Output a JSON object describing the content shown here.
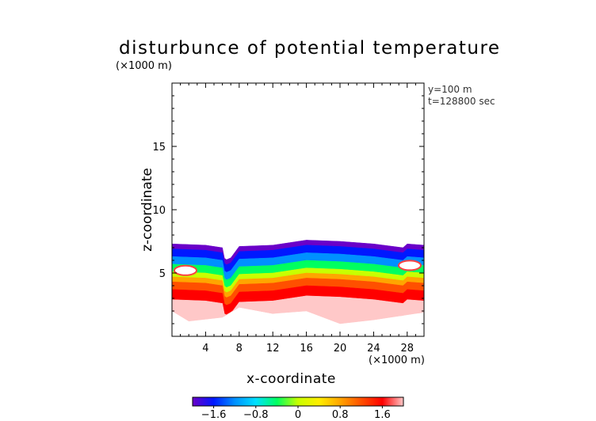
{
  "chart_data": {
    "type": "heatmap",
    "title": "disturbunce of potential temperature",
    "xlabel": "x-coordinate",
    "ylabel": "z-coordinate",
    "x_unit": "(×1000 m)",
    "y_unit": "(×1000 m)",
    "annotations": [
      "y=100 m",
      "t=128800 sec"
    ],
    "xlim": [
      0,
      30
    ],
    "ylim": [
      0,
      20
    ],
    "x_ticks": [
      4,
      8,
      12,
      16,
      20,
      24,
      28
    ],
    "y_ticks": [
      5,
      10,
      15
    ],
    "x_tick_labels": [
      "4",
      "8",
      "12",
      "16",
      "20",
      "24",
      "28"
    ],
    "y_tick_labels": [
      "5",
      "10",
      "15"
    ],
    "colorbar": {
      "min": -2.0,
      "max": 2.0,
      "ticks": [
        -1.6,
        -0.8,
        0,
        0.8,
        1.6
      ],
      "tick_labels": [
        "−1.6",
        "−0.8",
        "0",
        "0.8",
        "1.6"
      ],
      "colors": [
        "#6a00c8",
        "#0018ff",
        "#0090ff",
        "#00e0ff",
        "#00ff60",
        "#c8ff00",
        "#ffee00",
        "#ffa500",
        "#ff5000",
        "#ff0000",
        "#ffc8c8"
      ]
    },
    "field": {
      "description_free": false,
      "top_boundary": [
        [
          0,
          7.3
        ],
        [
          4,
          7.2
        ],
        [
          6,
          7.0
        ],
        [
          6.3,
          6.0
        ],
        [
          7,
          6.2
        ],
        [
          8,
          7.1
        ],
        [
          12,
          7.2
        ],
        [
          16,
          7.6
        ],
        [
          20,
          7.5
        ],
        [
          24,
          7.3
        ],
        [
          27.5,
          7.0
        ],
        [
          28,
          7.3
        ],
        [
          30,
          7.2
        ]
      ],
      "bottom_boundary": [
        [
          0,
          2.0
        ],
        [
          2,
          1.2
        ],
        [
          6,
          1.5
        ],
        [
          8,
          2.3
        ],
        [
          12,
          1.8
        ],
        [
          16,
          2.0
        ],
        [
          20,
          1.0
        ],
        [
          24,
          1.3
        ],
        [
          28,
          1.7
        ],
        [
          30,
          1.9
        ]
      ],
      "hot_spots": [
        [
          1.6,
          5.2,
          2.6
        ],
        [
          28.3,
          5.6,
          2.3
        ]
      ],
      "bands": [
        {
          "z_top_offset": 0.0,
          "value": -2.0
        },
        {
          "z_top_offset": 0.4,
          "value": -1.6
        },
        {
          "z_top_offset": 1.0,
          "value": -1.2
        },
        {
          "z_top_offset": 1.6,
          "value": -0.6
        },
        {
          "z_top_offset": 2.2,
          "value": 0.0
        },
        {
          "z_top_offset": 2.6,
          "value": 0.6
        },
        {
          "z_top_offset": 3.0,
          "value": 1.0
        },
        {
          "z_top_offset": 3.6,
          "value": 1.4
        },
        {
          "z_top_offset": 4.4,
          "value": 1.8
        },
        {
          "z_top_offset": 5.4,
          "value": 2.0
        }
      ]
    }
  }
}
